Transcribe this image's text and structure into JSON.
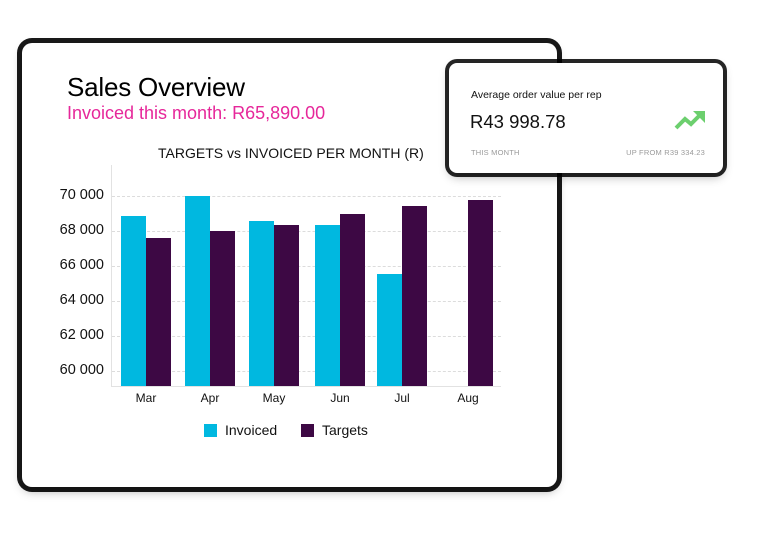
{
  "header": {
    "title": "Sales Overview",
    "subtitle": "Invoiced this month: R65,890.00"
  },
  "kpi_card": {
    "label": "Average order value per rep",
    "value": "R43 998.78",
    "period": "THIS MONTH",
    "change": "UP FROM R39 334.23",
    "icon": "trending-up-icon",
    "icon_color": "#6ccf6e"
  },
  "legend": {
    "invoiced": "Invoiced",
    "targets": "Targets"
  },
  "colors": {
    "invoiced": "#00b8e0",
    "targets": "#3d0844",
    "subtitle": "#e6279a"
  },
  "chart_data": {
    "type": "bar",
    "title": "TARGETS vs INVOICED PER MONTH (R)",
    "xlabel": "",
    "ylabel": "",
    "categories": [
      "Mar",
      "Apr",
      "May",
      "Jun",
      "Jul",
      "Aug"
    ],
    "series": [
      {
        "name": "Invoiced",
        "color": "#00b8e0",
        "values": [
          68850,
          70000,
          68600,
          68350,
          65550,
          null
        ]
      },
      {
        "name": "Targets",
        "color": "#3d0844",
        "values": [
          67600,
          68000,
          68350,
          69000,
          69450,
          69800
        ]
      }
    ],
    "yticks": [
      "60 000",
      "62 000",
      "64 000",
      "66 000",
      "68 000",
      "70 000"
    ],
    "ylim": [
      59200,
      71000
    ],
    "grid": true,
    "legend_position": "bottom"
  }
}
